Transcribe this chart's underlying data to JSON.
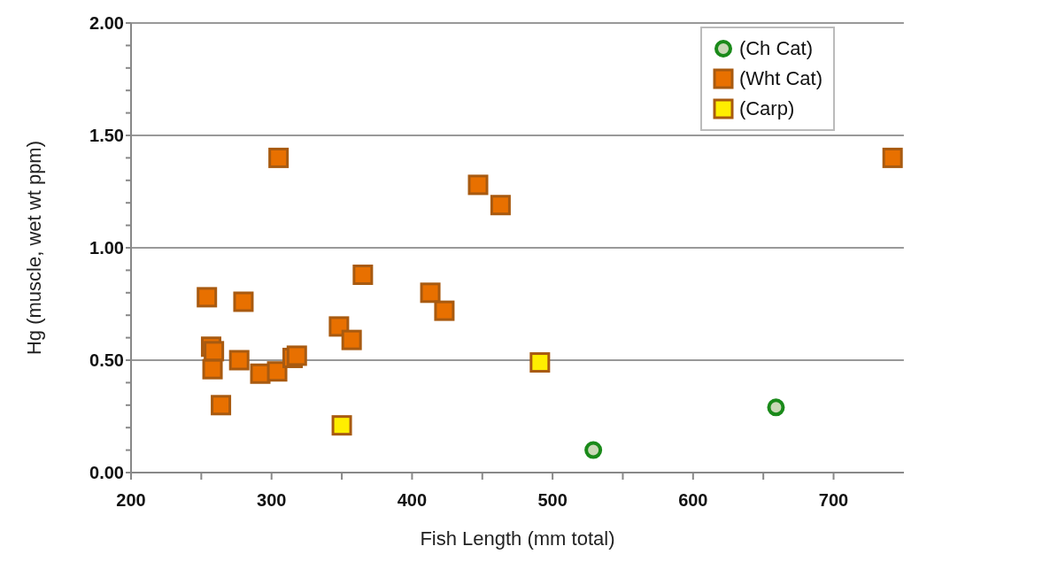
{
  "chart_data": {
    "type": "scatter",
    "xlabel": "Fish Length (mm total)",
    "ylabel": "Hg (muscle, wet wt ppm)",
    "xlim": [
      200,
      750
    ],
    "xticks": [
      200,
      {
        "value": 250,
        "label": null
      },
      300,
      {
        "value": 350,
        "label": null
      },
      400,
      {
        "value": 450,
        "label": null
      },
      500,
      {
        "value": 550,
        "label": null
      },
      600,
      {
        "value": 650,
        "label": null
      },
      700
    ],
    "ylim": [
      0,
      2
    ],
    "yticks": [
      {
        "value": 0,
        "label": "0.00"
      },
      {
        "value": 0.1,
        "label": null
      },
      {
        "value": 0.2,
        "label": null
      },
      {
        "value": 0.3,
        "label": null
      },
      {
        "value": 0.4,
        "label": null
      },
      {
        "value": 0.5,
        "label": "0.50"
      },
      {
        "value": 0.6,
        "label": null
      },
      {
        "value": 0.7,
        "label": null
      },
      {
        "value": 0.8,
        "label": null
      },
      {
        "value": 0.9,
        "label": null
      },
      {
        "value": 1,
        "label": "1.00"
      },
      {
        "value": 1.1,
        "label": null
      },
      {
        "value": 1.2,
        "label": null
      },
      {
        "value": 1.3,
        "label": null
      },
      {
        "value": 1.4,
        "label": null
      },
      {
        "value": 1.5,
        "label": "1.50"
      },
      {
        "value": 1.6,
        "label": null
      },
      {
        "value": 1.7,
        "label": null
      },
      {
        "value": 1.8,
        "label": null
      },
      {
        "value": 1.9,
        "label": null
      },
      {
        "value": 2,
        "label": "2.00"
      }
    ],
    "grid": "y",
    "legend": "top right",
    "series": [
      {
        "name": "(Ch Cat)",
        "color": "#1a8a1a",
        "marker": "circle",
        "x": [
          529,
          659
        ],
        "values": [
          0.1,
          0.29
        ]
      },
      {
        "name": "(Wht Cat)",
        "color": "#e87000",
        "marker": "square",
        "x": [
          254,
          257,
          259,
          258,
          264,
          280,
          277,
          292,
          304,
          305,
          315,
          318,
          348,
          357,
          365,
          413,
          423,
          447,
          463,
          742
        ],
        "values": [
          0.78,
          0.56,
          0.54,
          0.46,
          0.3,
          0.76,
          0.5,
          0.44,
          0.45,
          1.4,
          0.51,
          0.52,
          0.65,
          0.59,
          0.88,
          0.8,
          0.72,
          1.28,
          1.19,
          1.4
        ]
      },
      {
        "name": "(Carp)",
        "color": "#ffee00",
        "marker": "square",
        "x": [
          350,
          491
        ],
        "values": [
          0.21,
          0.49
        ]
      }
    ]
  }
}
